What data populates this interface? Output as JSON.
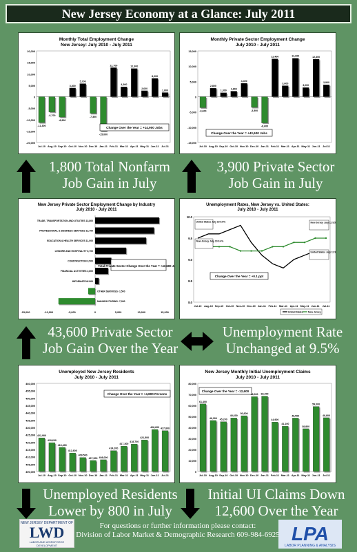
{
  "title": "New Jersey Economy at a Glance: July 2011",
  "colors": {
    "green": "#2e8b2e",
    "black": "#000000",
    "background": "#5f9464",
    "us_line": "#000000",
    "nj_line": "#2e8b2e"
  },
  "captions": {
    "c1_l1": "1,800 Total Nonfarm",
    "c1_l2": "Job Gain in July",
    "c2_l1": "3,900 Private Sector",
    "c2_l2": "Job Gain in July",
    "c3_l1": "43,600 Private Sector",
    "c3_l2": "Job Gain Over the Year",
    "c4_l1": "Unemployment Rate",
    "c4_l2": "Unchanged at 9.5%",
    "c5_l1": "Unemployed Residents",
    "c5_l2": "Lower by 800 in July",
    "c6_l1": "Initial UI Claims Down",
    "c6_l2": "12,600 Over the Year"
  },
  "footer": {
    "line1": "For questions or further information please contact:",
    "line2": "Division of Labor Market & Demographic Research 609-984-6925"
  },
  "logos": {
    "left_top": "NEW JERSEY DEPARTMENT OF",
    "left_main": "LWD",
    "left_sub": "LABOR AND WORKFORCE DEVELOPMENT",
    "right_main": "LPA",
    "right_sub": "LABOR PLANNING & ANALYSIS"
  },
  "chart_data": [
    {
      "type": "bar",
      "title": "Monthly Total Employment Change",
      "subtitle": "New Jersey: July 2010 - July 2011",
      "categories": [
        "Jul-10",
        "Aug-10",
        "Sep-10",
        "Oct-10",
        "Nov-10",
        "Dec-10",
        "Jan-11",
        "Feb-11",
        "Mar-11",
        "Apr-11",
        "May-11",
        "Jun-11",
        "Jul-11"
      ],
      "values": [
        -11300,
        -6700,
        -8900,
        3800,
        5700,
        -7300,
        -15000,
        12700,
        4300,
        12300,
        2600,
        8000,
        1800
      ],
      "labels": [
        "-11,300",
        "-6,700",
        "-8,900",
        "3,800",
        "5,700",
        "-7,300",
        "-15,000",
        "12,700",
        "4,300",
        "12,300",
        "2,600",
        "8,000",
        "1,800"
      ],
      "yticks": [
        "20,000",
        "15,000",
        "10,000",
        "5,000",
        "0",
        "-5,000",
        "-10,000",
        "-15,000",
        "-20,000"
      ],
      "ylim": [
        -20000,
        20000
      ],
      "annotation": "Change Over the Year = +14,900 Jobs"
    },
    {
      "type": "bar",
      "title": "Monthly Private Sector Employment Change",
      "subtitle": "July 2010 - July 2011",
      "categories": [
        "Jul-10",
        "Aug-10",
        "Sep-10",
        "Oct-10",
        "Nov-10",
        "Dec-10",
        "Jan-11",
        "Feb-11",
        "Mar-11",
        "Apr-11",
        "May-11",
        "Jun-11",
        "Jul-11"
      ],
      "values": [
        -3600,
        2800,
        1300,
        1800,
        4400,
        -3500,
        -8600,
        12400,
        3600,
        12600,
        3000,
        12300,
        3900
      ],
      "labels": [
        "-3,600",
        "2,800",
        "1,300",
        "1,800",
        "4,400",
        "-3,500",
        "-8,600",
        "12,400",
        "3,600",
        "12,600",
        "3,000",
        "12,300",
        "3,900"
      ],
      "yticks": [
        "15,000",
        "10,000",
        "5,000",
        "0",
        "-5,000",
        "-10,000",
        "-15,000"
      ],
      "ylim": [
        -15000,
        15000
      ],
      "annotation": "Change Over the Year = +43,600 Jobs"
    },
    {
      "type": "bar",
      "title": "New Jersey Private Sector Employment Change by Industry",
      "subtitle": "July 2010 - July 2011",
      "categories": [
        "TRADE, TRANSPORTATION AND UTILITIES 13,800",
        "PROFESSIONAL & BUSINESS SERVICES 12,700",
        "EDUCATION & HEALTH SERVICES 11,000",
        "LEISURE AND HOSPITALITY 6,700",
        "CONSTRUCTION 3,500",
        "FINANCIAL ACTIVITIES 2,800",
        "INFORMATION 800",
        "OTHER SERVICES -1,500",
        "MANUFACTURING -7,900"
      ],
      "values": [
        13800,
        12700,
        11000,
        6700,
        3500,
        2800,
        800,
        -1500,
        -7900
      ],
      "xticks": [
        "-15,000",
        "-10,000",
        "-5,000",
        "0",
        "5,000",
        "10,000",
        "15,000"
      ],
      "xlim": [
        -15000,
        15000
      ],
      "annotation": "Total Private Sector Change Over the Year = +43,600 Jobs"
    },
    {
      "type": "line",
      "title": "Unemployment Rates, New Jersey vs. United States:",
      "subtitle": "July 2010 - July 2011",
      "categories": [
        "Jul-10",
        "Aug-10",
        "Sep-10",
        "Oct-10",
        "Nov-10",
        "Dec-10",
        "Jan-11",
        "Feb-11",
        "Mar-11",
        "Apr-11",
        "May-11",
        "Jun-11",
        "Jul-11"
      ],
      "series": [
        {
          "name": "United States",
          "values": [
            9.5,
            9.6,
            9.6,
            9.7,
            9.8,
            9.4,
            9.1,
            8.9,
            8.8,
            9.0,
            9.1,
            9.2,
            9.1
          ]
        },
        {
          "name": "New Jersey",
          "values": [
            9.4,
            9.3,
            9.3,
            9.3,
            9.2,
            9.2,
            9.2,
            9.3,
            9.3,
            9.4,
            9.4,
            9.5,
            9.5
          ]
        }
      ],
      "yticks": [
        "10.0",
        "9.5",
        "9.0",
        "8.5",
        "8.0"
      ],
      "ylim": [
        8.0,
        10.0
      ],
      "callouts": {
        "us_start": "United States July 10 9.5%",
        "nj_start": "New Jersey July 10 9.4%",
        "nj_end": "New Jersey July 11 9.5%",
        "us_end": "United States July 11 9.1%"
      },
      "annotation": "Change Over the Year = +0.1 ppt",
      "legend": [
        "United States",
        "New Jersey"
      ]
    },
    {
      "type": "bar",
      "title": "Unemployed New Jersey Residents",
      "subtitle": "July 2010 - July 2011",
      "categories": [
        "Jul-10",
        "Aug-10",
        "Sep-10",
        "Oct-10",
        "Nov-10",
        "Dec-10",
        "Jan-11",
        "Feb-11",
        "Mar-11",
        "Apr-11",
        "May-11",
        "Jun-11",
        "Jul-11"
      ],
      "values": [
        422900,
        419600,
        416400,
        412600,
        409500,
        407500,
        408000,
        414200,
        417300,
        418700,
        421500,
        428600,
        427800
      ],
      "labels": [
        "422,900",
        "419,600",
        "416,400",
        "412,600",
        "409,500",
        "407,500",
        "408,000",
        "414,200",
        "417,300",
        "418,700",
        "421,500",
        "428,600",
        "427,800"
      ],
      "yticks": [
        "460,000",
        "455,000",
        "450,000",
        "445,000",
        "440,000",
        "435,000",
        "430,000",
        "425,000",
        "420,000",
        "415,000",
        "410,000",
        "405,000",
        "400,000"
      ],
      "ylim": [
        400000,
        460000
      ],
      "annotation": "Change Over the Year = +4,800 Persons"
    },
    {
      "type": "bar",
      "title": "New Jersey Monthly Initial Unemployment Claims",
      "subtitle": "July 2010 - July 2011",
      "categories": [
        "Jul-10",
        "Aug-10",
        "Sep-10",
        "Oct-10",
        "Nov-10",
        "Dec-10",
        "Jan-11",
        "Feb-11",
        "Mar-11",
        "Apr-11",
        "May-11",
        "Jun-11",
        "Jul-11"
      ],
      "values": [
        61400,
        46300,
        45200,
        48600,
        50600,
        68000,
        68400,
        44900,
        41100,
        48500,
        38800,
        59000,
        48800
      ],
      "labels": [
        "61,400",
        "46,300",
        "45,200",
        "48,600",
        "50,600",
        "68,000",
        "68,400",
        "44,900",
        "41,100",
        "48,500",
        "38,800",
        "59,000",
        "48,800"
      ],
      "yticks": [
        "80,000",
        "70,000",
        "60,000",
        "50,000",
        "40,000",
        "30,000",
        "20,000",
        "10,000",
        "0"
      ],
      "ylim": [
        0,
        80000
      ],
      "annotation": "Change Over the Year = -12,600"
    }
  ]
}
